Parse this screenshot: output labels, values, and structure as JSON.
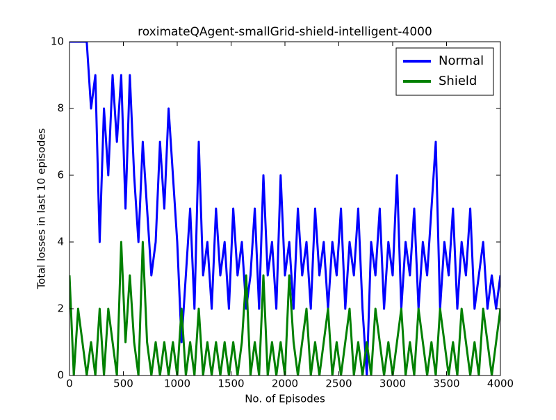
{
  "chart_data": {
    "type": "line",
    "title": "roximateQAgent-smallGrid-shield-intelligent-4000",
    "xlabel": "No. of Episodes",
    "ylabel": "Total losses in last 10 episodes",
    "x": [
      0,
      40,
      80,
      120,
      160,
      200,
      240,
      280,
      320,
      360,
      400,
      440,
      480,
      520,
      560,
      600,
      640,
      680,
      720,
      760,
      800,
      840,
      880,
      920,
      960,
      1000,
      1040,
      1080,
      1120,
      1160,
      1200,
      1240,
      1280,
      1320,
      1360,
      1400,
      1440,
      1480,
      1520,
      1560,
      1600,
      1640,
      1680,
      1720,
      1760,
      1800,
      1840,
      1880,
      1920,
      1960,
      2000,
      2040,
      2080,
      2120,
      2160,
      2200,
      2240,
      2280,
      2320,
      2360,
      2400,
      2440,
      2480,
      2520,
      2560,
      2600,
      2640,
      2680,
      2720,
      2760,
      2800,
      2840,
      2880,
      2920,
      2960,
      3000,
      3040,
      3080,
      3120,
      3160,
      3200,
      3240,
      3280,
      3320,
      3360,
      3400,
      3440,
      3480,
      3520,
      3560,
      3600,
      3640,
      3680,
      3720,
      3760,
      3800,
      3840,
      3880,
      3920,
      3960,
      4000
    ],
    "series": [
      {
        "name": "Normal",
        "color": "#0000ff",
        "values": [
          10,
          10,
          10,
          10,
          10,
          8,
          9,
          4,
          8,
          6,
          9,
          7,
          9,
          5,
          9,
          6,
          4,
          7,
          5,
          3,
          4,
          7,
          5,
          8,
          6,
          4,
          1,
          3,
          5,
          2,
          7,
          3,
          4,
          2,
          5,
          3,
          4,
          2,
          5,
          3,
          4,
          2,
          3,
          5,
          2,
          6,
          3,
          4,
          2,
          6,
          3,
          4,
          2,
          5,
          3,
          4,
          2,
          5,
          3,
          4,
          2,
          4,
          3,
          5,
          2,
          4,
          3,
          5,
          2,
          0,
          4,
          3,
          5,
          2,
          4,
          3,
          6,
          2,
          4,
          3,
          5,
          2,
          4,
          3,
          5,
          7,
          2,
          4,
          3,
          5,
          2,
          4,
          3,
          5,
          2,
          3,
          4,
          2,
          3,
          2,
          3
        ]
      },
      {
        "name": "Shield",
        "color": "#008000",
        "values": [
          3,
          0,
          2,
          1,
          0,
          1,
          0,
          2,
          0,
          2,
          1,
          0,
          4,
          1,
          3,
          1,
          0,
          4,
          1,
          0,
          1,
          0,
          1,
          0,
          1,
          0,
          2,
          0,
          1,
          0,
          2,
          0,
          1,
          0,
          1,
          0,
          1,
          0,
          1,
          0,
          1,
          3,
          0,
          1,
          0,
          3,
          0,
          1,
          0,
          1,
          0,
          3,
          1,
          0,
          1,
          2,
          0,
          1,
          0,
          1,
          2,
          0,
          1,
          0,
          1,
          2,
          0,
          1,
          0,
          1,
          0,
          2,
          1,
          0,
          1,
          0,
          1,
          2,
          0,
          1,
          0,
          2,
          1,
          0,
          1,
          0,
          2,
          1,
          0,
          1,
          0,
          2,
          1,
          0,
          1,
          0,
          2,
          1,
          0,
          1,
          2
        ]
      }
    ],
    "xlim": [
      0,
      4000
    ],
    "xticks": [
      0,
      500,
      1000,
      1500,
      2000,
      2500,
      3000,
      3500,
      4000
    ],
    "ylim": [
      0,
      10
    ],
    "yticks": [
      0,
      2,
      4,
      6,
      8,
      10
    ],
    "legend": "upper right"
  }
}
